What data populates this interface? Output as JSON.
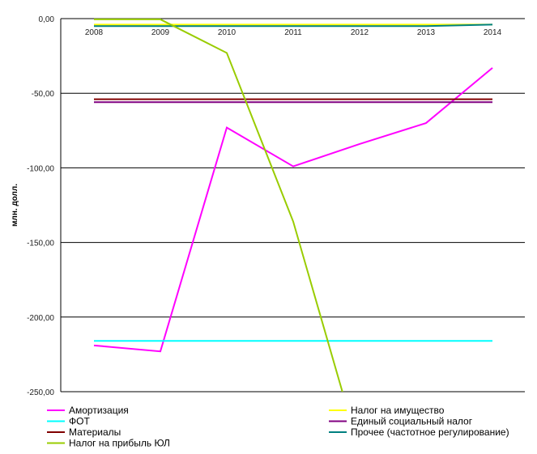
{
  "chart_data": {
    "type": "line",
    "x": [
      "2008",
      "2009",
      "2010",
      "2011",
      "2012",
      "2013",
      "2014"
    ],
    "ylabel": "млн. долл.",
    "ylim": [
      -250,
      0
    ],
    "yticks": [
      "0,00",
      "-50,00",
      "-100,00",
      "-150,00",
      "-200,00",
      "-250,00"
    ],
    "ytick_values": [
      0,
      -50,
      -100,
      -150,
      -200,
      -250
    ],
    "grid": "horizontal",
    "legend_position": "bottom",
    "series": [
      {
        "name": "Амортизация",
        "color": "#ff00ff",
        "values": [
          -219,
          -223,
          -73,
          -99,
          -84,
          -70,
          -33
        ]
      },
      {
        "name": "Налог на имущество",
        "color": "#ffff00",
        "values": [
          -4,
          -4,
          -4,
          -4,
          -4,
          -4,
          -4
        ]
      },
      {
        "name": "ФОТ",
        "color": "#00ffff",
        "values": [
          -216,
          -216,
          -216,
          -216,
          -216,
          -216,
          -216
        ]
      },
      {
        "name": "Единый социальный налог",
        "color": "#800080",
        "values": [
          -56,
          -56,
          -56,
          -56,
          -56,
          -56,
          -56
        ]
      },
      {
        "name": "Материалы",
        "color": "#800000",
        "values": [
          -54,
          -54,
          -54,
          -54,
          -54,
          -54,
          -54
        ]
      },
      {
        "name": "Прочее (частотное регулирование)",
        "color": "#008080",
        "values": [
          -5,
          -5,
          -5,
          -5,
          -5,
          -5,
          -4
        ]
      },
      {
        "name": "Налог на прибыль ЮЛ",
        "color": "#99cc00",
        "values": [
          -0.5,
          -0.5,
          -23,
          -136,
          -290,
          null,
          null
        ]
      }
    ]
  }
}
